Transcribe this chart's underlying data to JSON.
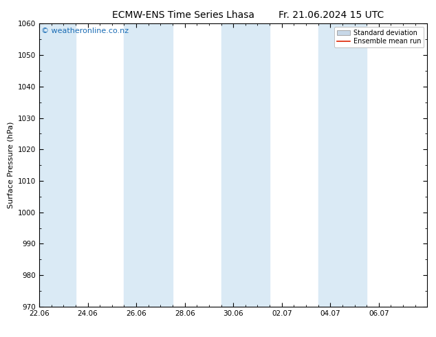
{
  "title_left": "ECMW-ENS Time Series Lhasa",
  "title_right": "Fr. 21.06.2024 15 UTC",
  "ylabel": "Surface Pressure (hPa)",
  "ylim": [
    970,
    1060
  ],
  "yticks": [
    970,
    980,
    990,
    1000,
    1010,
    1020,
    1030,
    1040,
    1050,
    1060
  ],
  "background_color": "#ffffff",
  "plot_bg_color": "#ffffff",
  "watermark": "© weatheronline.co.nz",
  "watermark_color": "#1a6cb5",
  "band_color": "#daeaf5",
  "mean_line_color": "#dd2200",
  "std_dev_patch_color": "#c8d8e8",
  "legend_std_label": "Standard deviation",
  "legend_mean_label": "Ensemble mean run",
  "xtick_dates": [
    "22.06",
    "24.06",
    "26.06",
    "28.06",
    "30.06",
    "02.07",
    "04.07",
    "06.07"
  ],
  "xtick_positions": [
    0,
    2,
    4,
    6,
    8,
    10,
    12,
    14
  ],
  "xlim": [
    0,
    16
  ],
  "shade_bands": [
    {
      "start": 0,
      "end": 1.5
    },
    {
      "start": 3.5,
      "end": 5.5
    },
    {
      "start": 7.5,
      "end": 9.5
    },
    {
      "start": 11.5,
      "end": 13.5
    }
  ],
  "title_fontsize": 10,
  "axis_label_fontsize": 8,
  "tick_fontsize": 7.5,
  "watermark_fontsize": 8,
  "legend_fontsize": 7
}
